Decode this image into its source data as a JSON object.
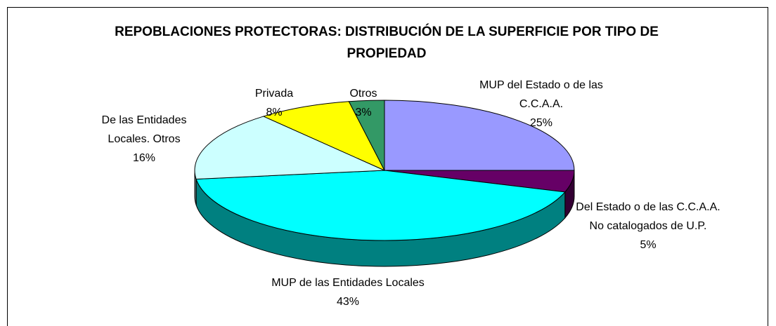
{
  "chart_data": {
    "type": "pie",
    "title": "REPOBLACIONES PROTECTORAS: DISTRIBUCIÓN DE LA SUPERFICIE POR TIPO DE PROPIEDAD",
    "categories": [
      "MUP del Estado o de las C.C.A.A.",
      "Del Estado o de las C.C.A.A. No catalogados de U.P.",
      "MUP de las Entidades Locales",
      "De las Entidades Locales. Otros",
      "Privada",
      "Otros"
    ],
    "values": [
      25,
      5,
      43,
      16,
      8,
      3
    ],
    "value_labels": [
      "25%",
      "5%",
      "43%",
      "16%",
      "8%",
      "3%"
    ],
    "colors": [
      "#9999ff",
      "#660066",
      "#00ffff",
      "#ccffff",
      "#ffff00",
      "#339966"
    ]
  }
}
